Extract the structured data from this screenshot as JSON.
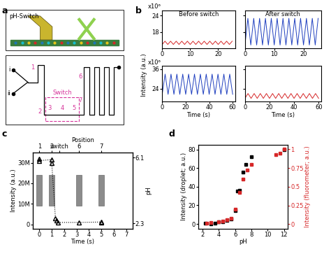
{
  "chart_data": [
    {
      "panel": "a",
      "type": "diagram",
      "title": "pH-Switch",
      "labels": [
        "i",
        "ii",
        "1",
        "2",
        "3",
        "4",
        "5",
        "6",
        "7"
      ],
      "annotation": "Switch"
    },
    {
      "panel": "b",
      "type": "line",
      "ylabel": "Intensity (a.u.)",
      "xlabel": "Time (s)",
      "annotations": [
        "Before switch",
        "After switch"
      ],
      "rows": [
        {
          "multiplier": "x10⁶",
          "ylim": [
            12,
            26
          ],
          "yticks": [
            18,
            24
          ],
          "segments": [
            {
              "xlim": [
                0,
                26
              ],
              "xticks": [
                0,
                10,
                20
              ],
              "series": [
                {
                  "color": "#d62728",
                  "x": [
                    0,
                    1,
                    2,
                    3,
                    4,
                    5,
                    6,
                    7,
                    8,
                    9,
                    10,
                    11,
                    12,
                    13,
                    14,
                    15,
                    16,
                    17,
                    18,
                    19,
                    20,
                    21,
                    22,
                    23,
                    24,
                    25
                  ],
                  "values": [
                    13.4,
                    14.6,
                    13.4,
                    14.6,
                    13.4,
                    14.6,
                    13.4,
                    14.6,
                    13.4,
                    14.6,
                    13.4,
                    14.6,
                    13.4,
                    14.6,
                    13.4,
                    14.6,
                    13.4,
                    14.6,
                    13.4,
                    14.6,
                    13.4,
                    14.6,
                    13.4,
                    14.6,
                    13.4,
                    14.6
                  ]
                }
              ]
            },
            {
              "xlim": [
                0,
                26
              ],
              "xticks": [
                0,
                10,
                20
              ],
              "series": [
                {
                  "color": "#1f3fbf",
                  "x": [
                    0,
                    1,
                    2,
                    3,
                    4,
                    5,
                    6,
                    7,
                    8,
                    9,
                    10,
                    11,
                    12,
                    13,
                    14,
                    15,
                    16,
                    17,
                    18,
                    19,
                    20,
                    21,
                    22,
                    23,
                    24,
                    25
                  ],
                  "values": [
                    13.2,
                    23.0,
                    13.2,
                    23.0,
                    13.2,
                    23.0,
                    13.2,
                    23.0,
                    13.2,
                    23.0,
                    13.2,
                    23.0,
                    13.2,
                    23.0,
                    13.2,
                    23.0,
                    13.2,
                    23.0,
                    13.2,
                    23.0,
                    13.2,
                    23.0,
                    13.2,
                    23.0,
                    13.2,
                    23.0
                  ]
                }
              ]
            }
          ]
        },
        {
          "multiplier": "x10⁶",
          "ylim": [
            16,
            38
          ],
          "yticks": [
            24,
            36
          ],
          "segments": [
            {
              "xlim": [
                0,
                62
              ],
              "xticks": [
                0,
                20,
                40,
                60
              ],
              "series": [
                {
                  "color": "#1f3fbf",
                  "x": [
                    0,
                    2.5,
                    5,
                    7.5,
                    10,
                    12.5,
                    15,
                    17.5,
                    20,
                    22.5,
                    25,
                    27.5,
                    30,
                    32.5,
                    35,
                    37.5,
                    40,
                    42.5,
                    45,
                    47.5,
                    50,
                    52.5,
                    55,
                    57.5,
                    60
                  ],
                  "values": [
                    20.5,
                    33.0,
                    20.5,
                    33.0,
                    20.5,
                    33.0,
                    20.5,
                    33.0,
                    20.5,
                    33.0,
                    20.5,
                    33.0,
                    20.5,
                    33.0,
                    20.5,
                    33.0,
                    20.5,
                    33.0,
                    20.5,
                    33.0,
                    20.5,
                    33.0,
                    20.5,
                    33.0,
                    20.5
                  ]
                }
              ]
            },
            {
              "xlim": [
                0,
                62
              ],
              "xticks": [
                0,
                20,
                40,
                60
              ],
              "series": [
                {
                  "color": "#d62728",
                  "x": [
                    0,
                    2.5,
                    5,
                    7.5,
                    10,
                    12.5,
                    15,
                    17.5,
                    20,
                    22.5,
                    25,
                    27.5,
                    30,
                    32.5,
                    35,
                    37.5,
                    40,
                    42.5,
                    45,
                    47.5,
                    50,
                    52.5,
                    55,
                    57.5,
                    60
                  ],
                  "values": [
                    18.0,
                    21.0,
                    18.0,
                    21.0,
                    18.0,
                    21.0,
                    18.0,
                    21.0,
                    18.0,
                    21.0,
                    18.0,
                    21.0,
                    18.0,
                    21.0,
                    18.0,
                    21.0,
                    18.0,
                    21.0,
                    18.0,
                    21.0,
                    18.0,
                    21.0,
                    18.0,
                    21.0,
                    18.0
                  ]
                }
              ]
            }
          ]
        }
      ]
    },
    {
      "panel": "c",
      "type": "scatter",
      "xlabel": "Time (s)",
      "ylabel": "Intensity (a.u.)",
      "x2label": "Position",
      "y2label": "pH",
      "xlim": [
        -0.5,
        7.5
      ],
      "xticks": [
        0,
        1,
        2,
        3,
        4,
        5,
        6,
        7
      ],
      "ylim": [
        -2000000,
        35000000
      ],
      "yticks": [
        0,
        {
          "value": 10000000,
          "label": "10M"
        },
        {
          "value": 20000000,
          "label": "20M"
        },
        {
          "value": 30000000,
          "label": "30M"
        }
      ],
      "x2ticks": [
        {
          "value": 0,
          "label": "1"
        },
        {
          "value": 1,
          "label": "2"
        },
        {
          "value": 1.6,
          "label": "switch"
        },
        {
          "value": 3.2,
          "label": "6"
        },
        {
          "value": 5,
          "label": "7"
        }
      ],
      "y2lim": [
        2.0,
        6.4
      ],
      "y2ticks": [
        2.3,
        6.1
      ],
      "series": [
        {
          "color": "#000000",
          "marker": "triangle",
          "line_style": "dotted",
          "x": [
            0,
            0,
            1,
            1,
            1.3,
            1.4,
            1.5,
            3.2,
            5,
            5
          ],
          "values": [
            32000000,
            31000000,
            31500000,
            30000000,
            3000000,
            2000000,
            1000000,
            1000000,
            1200000,
            800000
          ]
        }
      ]
    },
    {
      "panel": "d",
      "type": "scatter",
      "xlabel": "pH",
      "ylabel": "Intensity (droplet; a.u.)",
      "y2label": "Intensity (fluorometer; a.u.)",
      "xlim": [
        1.5,
        12.5
      ],
      "xticks": [
        2,
        4,
        6,
        8,
        10,
        12
      ],
      "ylim": [
        -5,
        85
      ],
      "yticks": [
        0,
        20,
        40,
        60,
        80
      ],
      "y2lim": [
        -0.06,
        1.06
      ],
      "y2ticks": [
        0,
        0.25,
        0.5,
        0.75,
        1
      ],
      "series": [
        {
          "color": "#000000",
          "marker": "square",
          "line_style": "none",
          "x": [
            2.3,
            3.0,
            3.5,
            4.0,
            4.5,
            5.0,
            5.5,
            6.0,
            6.3,
            6.5,
            7.0,
            7.3,
            8.0,
            12.0
          ],
          "values": [
            1,
            0,
            1,
            2,
            2,
            4,
            5,
            14,
            35,
            36,
            56,
            64,
            72,
            80
          ]
        },
        {
          "color": "#d62728",
          "marker": "square",
          "line_style": "none",
          "axis": "y2",
          "x": [
            2.5,
            3.0,
            4.0,
            4.5,
            5.0,
            5.5,
            6.0,
            6.5,
            7.0,
            7.5,
            8.0,
            11.0,
            11.5,
            12.0
          ],
          "values": [
            0.01,
            0.02,
            0.03,
            0.04,
            0.06,
            0.08,
            0.2,
            0.42,
            0.6,
            0.72,
            0.8,
            0.93,
            0.95,
            1.0
          ]
        }
      ]
    }
  ]
}
